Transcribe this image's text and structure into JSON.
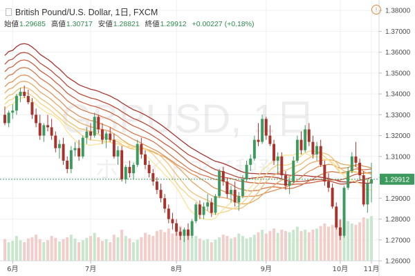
{
  "header": {
    "title": "British Pound/U.S. Dollar, 1日, FXCM",
    "open_label": "始値",
    "open": "1.29685",
    "high_label": "高値",
    "high": "1.30717",
    "low_label": "安値",
    "low": "1.28821",
    "close_label": "終値",
    "close": "1.29912",
    "change": "+0.00227 (+0.18%)"
  },
  "watermark": "GBPUSD, 1日",
  "watermark_sub": "ホワイトアイ税務",
  "icons": {
    "alert": "alert-circle-icon",
    "collapse": "collapse-square-icon"
  },
  "colors": {
    "up": "#3d9a5e",
    "down": "#a8322c",
    "up_volume": "#c8e6cd",
    "down_volume": "#f2cdca",
    "price_line": "#3d9a5e",
    "ribbon": [
      "#a8322c",
      "#b94a36",
      "#c96040",
      "#d6794c",
      "#e09158",
      "#e8a863",
      "#efbf72",
      "#f4d382",
      "#f8e496"
    ]
  },
  "chart_data": {
    "type": "candlestick",
    "title": "British Pound/U.S. Dollar, 1日, FXCM",
    "ylim": [
      1.26,
      1.385
    ],
    "y_ticks": [
      "1.38000",
      "1.37000",
      "1.36000",
      "1.35000",
      "1.34000",
      "1.33000",
      "1.32000",
      "1.31000",
      "1.30000",
      "1.29000",
      "1.28000",
      "1.27000",
      "1.26000"
    ],
    "x_ticks": [
      "6月",
      "7月",
      "8月",
      "9月",
      "10月",
      "11月"
    ],
    "current_price": "1.29912",
    "grid": true,
    "candles": [
      [
        1.33,
        1.334,
        1.325,
        1.326
      ],
      [
        1.326,
        1.332,
        1.324,
        1.331
      ],
      [
        1.331,
        1.335,
        1.328,
        1.332
      ],
      [
        1.332,
        1.34,
        1.33,
        1.339
      ],
      [
        1.339,
        1.343,
        1.336,
        1.341
      ],
      [
        1.341,
        1.344,
        1.338,
        1.339
      ],
      [
        1.339,
        1.342,
        1.335,
        1.336
      ],
      [
        1.336,
        1.338,
        1.328,
        1.33
      ],
      [
        1.33,
        1.333,
        1.324,
        1.326
      ],
      [
        1.326,
        1.33,
        1.318,
        1.32
      ],
      [
        1.32,
        1.326,
        1.317,
        1.325
      ],
      [
        1.325,
        1.33,
        1.322,
        1.324
      ],
      [
        1.324,
        1.328,
        1.318,
        1.32
      ],
      [
        1.32,
        1.322,
        1.312,
        1.314
      ],
      [
        1.314,
        1.318,
        1.309,
        1.316
      ],
      [
        1.316,
        1.319,
        1.306,
        1.308
      ],
      [
        1.308,
        1.31,
        1.302,
        1.304
      ],
      [
        1.304,
        1.315,
        1.302,
        1.313
      ],
      [
        1.313,
        1.317,
        1.31,
        1.314
      ],
      [
        1.314,
        1.318,
        1.308,
        1.31
      ],
      [
        1.31,
        1.32,
        1.309,
        1.319
      ],
      [
        1.319,
        1.324,
        1.316,
        1.322
      ],
      [
        1.322,
        1.326,
        1.318,
        1.32
      ],
      [
        1.32,
        1.331,
        1.319,
        1.329
      ],
      [
        1.329,
        1.33,
        1.321,
        1.323
      ],
      [
        1.323,
        1.326,
        1.316,
        1.318
      ],
      [
        1.318,
        1.322,
        1.314,
        1.321
      ],
      [
        1.321,
        1.324,
        1.317,
        1.318
      ],
      [
        1.318,
        1.321,
        1.309,
        1.31
      ],
      [
        1.31,
        1.315,
        1.306,
        1.313
      ],
      [
        1.313,
        1.315,
        1.298,
        1.299
      ],
      [
        1.299,
        1.306,
        1.297,
        1.305
      ],
      [
        1.305,
        1.308,
        1.3,
        1.302
      ],
      [
        1.302,
        1.307,
        1.299,
        1.306
      ],
      [
        1.306,
        1.318,
        1.305,
        1.316
      ],
      [
        1.316,
        1.319,
        1.309,
        1.311
      ],
      [
        1.311,
        1.313,
        1.304,
        1.306
      ],
      [
        1.306,
        1.308,
        1.3,
        1.302
      ],
      [
        1.302,
        1.304,
        1.296,
        1.298
      ],
      [
        1.298,
        1.3,
        1.292,
        1.294
      ],
      [
        1.294,
        1.297,
        1.288,
        1.29
      ],
      [
        1.29,
        1.292,
        1.283,
        1.285
      ],
      [
        1.285,
        1.287,
        1.278,
        1.28
      ],
      [
        1.28,
        1.283,
        1.275,
        1.278
      ],
      [
        1.278,
        1.28,
        1.272,
        1.274
      ],
      [
        1.274,
        1.276,
        1.27,
        1.272
      ],
      [
        1.272,
        1.276,
        1.269,
        1.275
      ],
      [
        1.275,
        1.278,
        1.27,
        1.272
      ],
      [
        1.272,
        1.28,
        1.271,
        1.279
      ],
      [
        1.279,
        1.288,
        1.278,
        1.287
      ],
      [
        1.287,
        1.289,
        1.28,
        1.282
      ],
      [
        1.282,
        1.288,
        1.28,
        1.286
      ],
      [
        1.286,
        1.292,
        1.284,
        1.288
      ],
      [
        1.288,
        1.29,
        1.281,
        1.283
      ],
      [
        1.283,
        1.292,
        1.282,
        1.291
      ],
      [
        1.291,
        1.304,
        1.29,
        1.303
      ],
      [
        1.303,
        1.305,
        1.296,
        1.298
      ],
      [
        1.298,
        1.3,
        1.29,
        1.292
      ],
      [
        1.292,
        1.296,
        1.288,
        1.294
      ],
      [
        1.294,
        1.298,
        1.286,
        1.288
      ],
      [
        1.288,
        1.293,
        1.284,
        1.291
      ],
      [
        1.291,
        1.301,
        1.29,
        1.299
      ],
      [
        1.299,
        1.308,
        1.298,
        1.306
      ],
      [
        1.306,
        1.311,
        1.303,
        1.309
      ],
      [
        1.309,
        1.32,
        1.308,
        1.318
      ],
      [
        1.318,
        1.326,
        1.315,
        1.317
      ],
      [
        1.317,
        1.33,
        1.316,
        1.328
      ],
      [
        1.328,
        1.329,
        1.318,
        1.32
      ],
      [
        1.32,
        1.325,
        1.315,
        1.316
      ],
      [
        1.316,
        1.318,
        1.306,
        1.308
      ],
      [
        1.308,
        1.312,
        1.302,
        1.31
      ],
      [
        1.31,
        1.312,
        1.299,
        1.301
      ],
      [
        1.301,
        1.303,
        1.294,
        1.296
      ],
      [
        1.296,
        1.3,
        1.292,
        1.298
      ],
      [
        1.298,
        1.31,
        1.297,
        1.308
      ],
      [
        1.308,
        1.32,
        1.307,
        1.318
      ],
      [
        1.318,
        1.322,
        1.311,
        1.313
      ],
      [
        1.313,
        1.325,
        1.312,
        1.323
      ],
      [
        1.323,
        1.326,
        1.315,
        1.317
      ],
      [
        1.317,
        1.32,
        1.309,
        1.311
      ],
      [
        1.311,
        1.317,
        1.308,
        1.315
      ],
      [
        1.315,
        1.318,
        1.305,
        1.306
      ],
      [
        1.306,
        1.308,
        1.296,
        1.298
      ],
      [
        1.298,
        1.302,
        1.293,
        1.295
      ],
      [
        1.295,
        1.297,
        1.285,
        1.286
      ],
      [
        1.286,
        1.288,
        1.275,
        1.276
      ],
      [
        1.276,
        1.28,
        1.27,
        1.272
      ],
      [
        1.272,
        1.296,
        1.271,
        1.295
      ],
      [
        1.295,
        1.305,
        1.294,
        1.303
      ],
      [
        1.303,
        1.312,
        1.302,
        1.31
      ],
      [
        1.31,
        1.317,
        1.305,
        1.307
      ],
      [
        1.307,
        1.309,
        1.299,
        1.301
      ],
      [
        1.301,
        1.303,
        1.286,
        1.287
      ],
      [
        1.287,
        1.299,
        1.283,
        1.297
      ],
      [
        1.297,
        1.307,
        1.288,
        1.2991
      ]
    ],
    "volume": [
      0.35,
      0.3,
      0.32,
      0.4,
      0.33,
      0.3,
      0.36,
      0.38,
      0.42,
      0.35,
      0.3,
      0.33,
      0.4,
      0.37,
      0.31,
      0.35,
      0.38,
      0.42,
      0.36,
      0.3,
      0.33,
      0.37,
      0.4,
      0.45,
      0.38,
      0.32,
      0.35,
      0.3,
      0.42,
      0.38,
      0.5,
      0.4,
      0.36,
      0.3,
      0.34,
      0.38,
      0.45,
      0.42,
      0.4,
      0.48,
      0.5,
      0.46,
      0.52,
      0.44,
      0.48,
      0.56,
      0.5,
      0.42,
      0.38,
      0.4,
      0.36,
      0.33,
      0.35,
      0.3,
      0.34,
      0.38,
      0.42,
      0.4,
      0.36,
      0.38,
      0.44,
      0.4,
      0.36,
      0.38,
      0.42,
      0.46,
      0.5,
      0.44,
      0.48,
      0.52,
      0.45,
      0.5,
      0.48,
      0.46,
      0.5,
      0.55,
      0.48,
      0.5,
      0.46,
      0.5,
      0.52,
      0.56,
      0.6,
      0.55,
      0.58,
      0.62,
      0.66,
      0.7,
      0.64,
      0.6,
      0.58,
      0.62,
      0.7,
      0.68,
      0.72
    ]
  }
}
